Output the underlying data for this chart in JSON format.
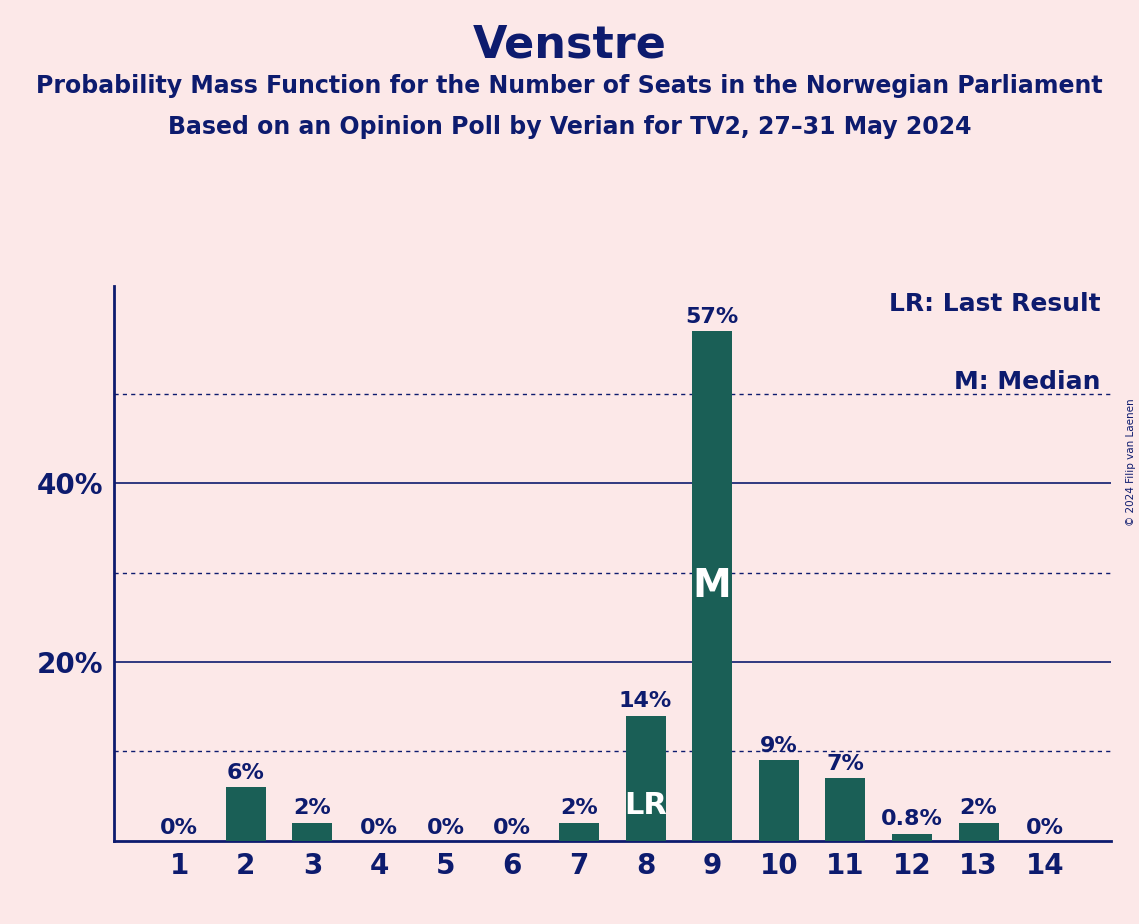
{
  "title": "Venstre",
  "subtitle1": "Probability Mass Function for the Number of Seats in the Norwegian Parliament",
  "subtitle2": "Based on an Opinion Poll by Verian for TV2, 27–31 May 2024",
  "copyright": "© 2024 Filip van Laenen",
  "categories": [
    1,
    2,
    3,
    4,
    5,
    6,
    7,
    8,
    9,
    10,
    11,
    12,
    13,
    14
  ],
  "values": [
    0,
    6,
    2,
    0,
    0,
    0,
    2,
    14,
    57,
    9,
    7,
    0.8,
    2,
    0
  ],
  "labels": [
    "0%",
    "6%",
    "2%",
    "0%",
    "0%",
    "0%",
    "2%",
    "14%",
    "57%",
    "9%",
    "7%",
    "0.8%",
    "2%",
    "0%"
  ],
  "bar_color": "#1a5f56",
  "bg_color": "#fce8e8",
  "text_color": "#0d1b6e",
  "lr_bar": 8,
  "median_bar": 9,
  "legend_lr": "LR: Last Result",
  "legend_m": "M: Median",
  "yticks": [
    20,
    40
  ],
  "ytick_labels": [
    "20%",
    "40%"
  ],
  "dotted_lines": [
    10,
    30,
    50
  ],
  "solid_lines": [
    20,
    40
  ],
  "ymax": 62,
  "title_fontsize": 32,
  "subtitle_fontsize": 17,
  "axis_fontsize": 20,
  "label_fontsize": 16,
  "legend_fontsize": 18,
  "lr_label_fontsize": 22,
  "m_label_fontsize": 28
}
